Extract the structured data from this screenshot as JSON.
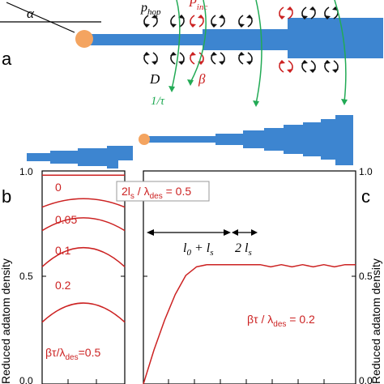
{
  "panel_a": {
    "label": "a",
    "angle_symbol": "α",
    "p_hop": "p",
    "p_hop_sub": "hop",
    "p_inc": "P",
    "p_inc_sub": "inc",
    "d_label": "D",
    "beta_label": "β",
    "tau_label": "1/τ",
    "nanowire_color": "#3d85d0",
    "droplet_color": "#f4a460",
    "arrow_black": "#111111",
    "arrow_red": "#cc2222",
    "arrow_green": "#22aa55"
  },
  "panel_b": {
    "label": "b",
    "ylabel": "Reduced adatom density",
    "yticks": [
      "1.0",
      "0.5",
      "0.0"
    ],
    "curve_labels": [
      "0",
      "0.05",
      "0.1",
      "0.2"
    ],
    "legend_beta": "βτ/λ",
    "legend_sub": "des",
    "legend_value": "=0.5",
    "color": "#cc2222"
  },
  "panel_c": {
    "label": "c",
    "ylabel": "Reduced adatom density",
    "yticks": [
      "1.0",
      "0.5",
      "0.0"
    ],
    "annot_box_pre": "2l",
    "annot_box_sub_s": "s",
    "annot_box_mid": " / λ",
    "annot_box_sub_des": "des",
    "annot_box_post": " = 0.5",
    "l0_text": "l",
    "l0_sub": "0",
    "plus": " + l",
    "plus_sub": "s",
    "two_ls": "2 l",
    "two_ls_sub": "s",
    "beta_tau": "βτ / λ",
    "beta_tau_sub": "des",
    "beta_tau_val": " = 0.2",
    "color": "#cc2222"
  },
  "chart_data": [
    {
      "type": "line",
      "panel": "b",
      "ylabel": "Reduced adatom density",
      "ylim": [
        0.0,
        1.0
      ],
      "series": [
        {
          "name": "0",
          "x": [
            0,
            0.5,
            1
          ],
          "y": [
            0.98,
            0.98,
            0.98
          ]
        },
        {
          "name": "0.05",
          "x": [
            0,
            0.5,
            1
          ],
          "y": [
            0.83,
            0.87,
            0.83
          ]
        },
        {
          "name": "0.1",
          "x": [
            0,
            0.5,
            1
          ],
          "y": [
            0.72,
            0.78,
            0.72
          ]
        },
        {
          "name": "0.2",
          "x": [
            0,
            0.5,
            1
          ],
          "y": [
            0.55,
            0.64,
            0.55
          ]
        },
        {
          "name": "0.5",
          "x": [
            0,
            0.5,
            1
          ],
          "y": [
            0.29,
            0.38,
            0.29
          ]
        }
      ]
    },
    {
      "type": "line",
      "panel": "c",
      "ylabel": "Reduced adatom density",
      "ylim": [
        0.0,
        1.0
      ],
      "series": [
        {
          "name": "βτ / λdes = 0.2",
          "x": [
            0,
            0.05,
            0.1,
            0.15,
            0.2,
            0.25,
            0.3,
            0.35,
            0.4,
            0.45,
            0.5,
            0.55,
            0.6,
            0.65,
            0.7,
            0.75,
            0.8,
            0.85,
            0.9,
            0.95,
            1.0
          ],
          "y": [
            0.0,
            0.16,
            0.3,
            0.42,
            0.51,
            0.55,
            0.56,
            0.56,
            0.56,
            0.56,
            0.56,
            0.56,
            0.55,
            0.56,
            0.55,
            0.56,
            0.55,
            0.56,
            0.55,
            0.56,
            0.56
          ]
        }
      ]
    }
  ]
}
